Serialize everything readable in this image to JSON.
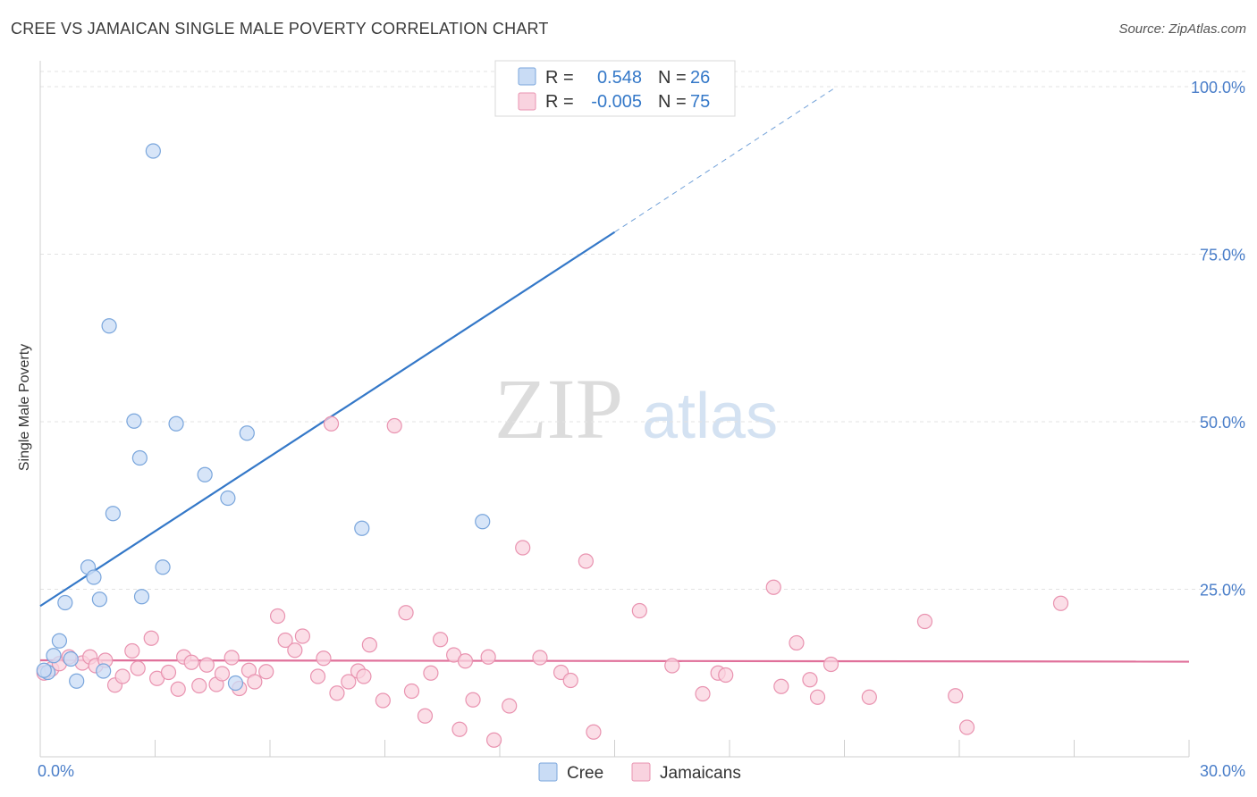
{
  "title": "CREE VS JAMAICAN SINGLE MALE POVERTY CORRELATION CHART",
  "source": "Source: ZipAtlas.com",
  "watermark": {
    "zip": "ZIP",
    "atlas": "atlas"
  },
  "colors": {
    "cree_fill": "#c9dcf5",
    "cree_stroke": "#7aa6dc",
    "cree_line": "#3478c8",
    "jam_fill": "#f9d3df",
    "jam_stroke": "#e993b0",
    "jam_line": "#e0709a",
    "axis_text": "#4a7ec9"
  },
  "legend": {
    "rows": [
      {
        "r_label": "R =",
        "r_value": "0.548",
        "n_label": "N =",
        "n_value": "26"
      },
      {
        "r_label": "R =",
        "r_value": "-0.005",
        "n_label": "N =",
        "n_value": "75"
      }
    ]
  },
  "bottom_legend": [
    "Cree",
    "Jamaicans"
  ],
  "chart_data": {
    "type": "scatter",
    "xlabel": "",
    "ylabel": "Single Male Poverty",
    "xlim": [
      0,
      30
    ],
    "ylim": [
      0,
      100
    ],
    "x_tick_labels": [
      "0.0%",
      "30.0%"
    ],
    "y_ticks": [
      25,
      50,
      75,
      100
    ],
    "y_tick_labels": [
      "25.0%",
      "50.0%",
      "75.0%",
      "100.0%"
    ],
    "grid": true,
    "legend_position": "top-center",
    "series": [
      {
        "name": "Cree",
        "points": [
          [
            0.2,
            12.6
          ],
          [
            0.35,
            15.1
          ],
          [
            0.5,
            17.3
          ],
          [
            0.65,
            23.0
          ],
          [
            0.8,
            14.6
          ],
          [
            0.95,
            11.3
          ],
          [
            1.25,
            28.3
          ],
          [
            1.4,
            26.8
          ],
          [
            1.55,
            23.5
          ],
          [
            1.65,
            12.8
          ],
          [
            1.8,
            64.3
          ],
          [
            1.9,
            36.3
          ],
          [
            2.45,
            50.1
          ],
          [
            2.6,
            44.6
          ],
          [
            2.65,
            23.9
          ],
          [
            2.95,
            90.4
          ],
          [
            3.2,
            28.3
          ],
          [
            3.55,
            49.7
          ],
          [
            4.3,
            42.1
          ],
          [
            4.9,
            38.6
          ],
          [
            5.1,
            11.0
          ],
          [
            5.4,
            48.3
          ],
          [
            8.4,
            34.1
          ],
          [
            11.55,
            35.1
          ],
          [
            13.6,
            99.5
          ],
          [
            0.1,
            12.9
          ]
        ],
        "trend": {
          "x0": 0,
          "y0": 22.5,
          "x1": 15,
          "y1": 78.3,
          "dash_x1": 20.8,
          "dash_y1": 100
        }
      },
      {
        "name": "Jamaicans",
        "points": [
          [
            0.1,
            12.5
          ],
          [
            0.3,
            13.1
          ],
          [
            0.5,
            13.9
          ],
          [
            0.75,
            14.9
          ],
          [
            1.1,
            14.0
          ],
          [
            1.3,
            14.9
          ],
          [
            1.45,
            13.6
          ],
          [
            1.7,
            14.4
          ],
          [
            1.95,
            10.7
          ],
          [
            2.15,
            12.0
          ],
          [
            2.4,
            15.8
          ],
          [
            2.55,
            13.2
          ],
          [
            2.9,
            17.7
          ],
          [
            3.05,
            11.7
          ],
          [
            3.35,
            12.6
          ],
          [
            3.6,
            10.1
          ],
          [
            3.75,
            14.9
          ],
          [
            3.95,
            14.1
          ],
          [
            4.15,
            10.6
          ],
          [
            4.35,
            13.7
          ],
          [
            4.6,
            10.8
          ],
          [
            4.75,
            12.4
          ],
          [
            5.0,
            14.8
          ],
          [
            5.2,
            10.2
          ],
          [
            5.45,
            12.9
          ],
          [
            5.6,
            11.2
          ],
          [
            5.9,
            12.7
          ],
          [
            6.2,
            21.0
          ],
          [
            6.4,
            17.4
          ],
          [
            6.65,
            15.9
          ],
          [
            6.85,
            18.0
          ],
          [
            7.25,
            12.0
          ],
          [
            7.4,
            14.7
          ],
          [
            7.6,
            49.7
          ],
          [
            7.75,
            9.5
          ],
          [
            8.05,
            11.2
          ],
          [
            8.3,
            12.8
          ],
          [
            8.45,
            12.0
          ],
          [
            8.6,
            16.7
          ],
          [
            8.95,
            8.4
          ],
          [
            9.25,
            49.4
          ],
          [
            9.55,
            21.5
          ],
          [
            9.7,
            9.8
          ],
          [
            10.05,
            6.1
          ],
          [
            10.2,
            12.5
          ],
          [
            10.45,
            17.5
          ],
          [
            10.8,
            15.2
          ],
          [
            10.95,
            4.1
          ],
          [
            11.1,
            14.3
          ],
          [
            11.3,
            8.5
          ],
          [
            11.7,
            14.9
          ],
          [
            11.85,
            2.5
          ],
          [
            12.25,
            7.6
          ],
          [
            12.6,
            31.2
          ],
          [
            13.05,
            14.8
          ],
          [
            13.6,
            12.6
          ],
          [
            13.85,
            11.4
          ],
          [
            14.25,
            29.2
          ],
          [
            14.45,
            3.7
          ],
          [
            15.65,
            21.8
          ],
          [
            16.5,
            13.6
          ],
          [
            17.3,
            9.4
          ],
          [
            17.7,
            12.5
          ],
          [
            17.9,
            12.2
          ],
          [
            19.15,
            25.3
          ],
          [
            19.35,
            10.5
          ],
          [
            19.75,
            17.0
          ],
          [
            20.1,
            11.5
          ],
          [
            20.3,
            8.9
          ],
          [
            20.65,
            13.8
          ],
          [
            21.65,
            8.9
          ],
          [
            23.1,
            20.2
          ],
          [
            23.9,
            9.1
          ],
          [
            24.2,
            4.4
          ],
          [
            26.65,
            22.9
          ]
        ],
        "trend": {
          "x0": 0,
          "y0": 14.4,
          "x1": 30,
          "y1": 14.2
        }
      }
    ]
  }
}
